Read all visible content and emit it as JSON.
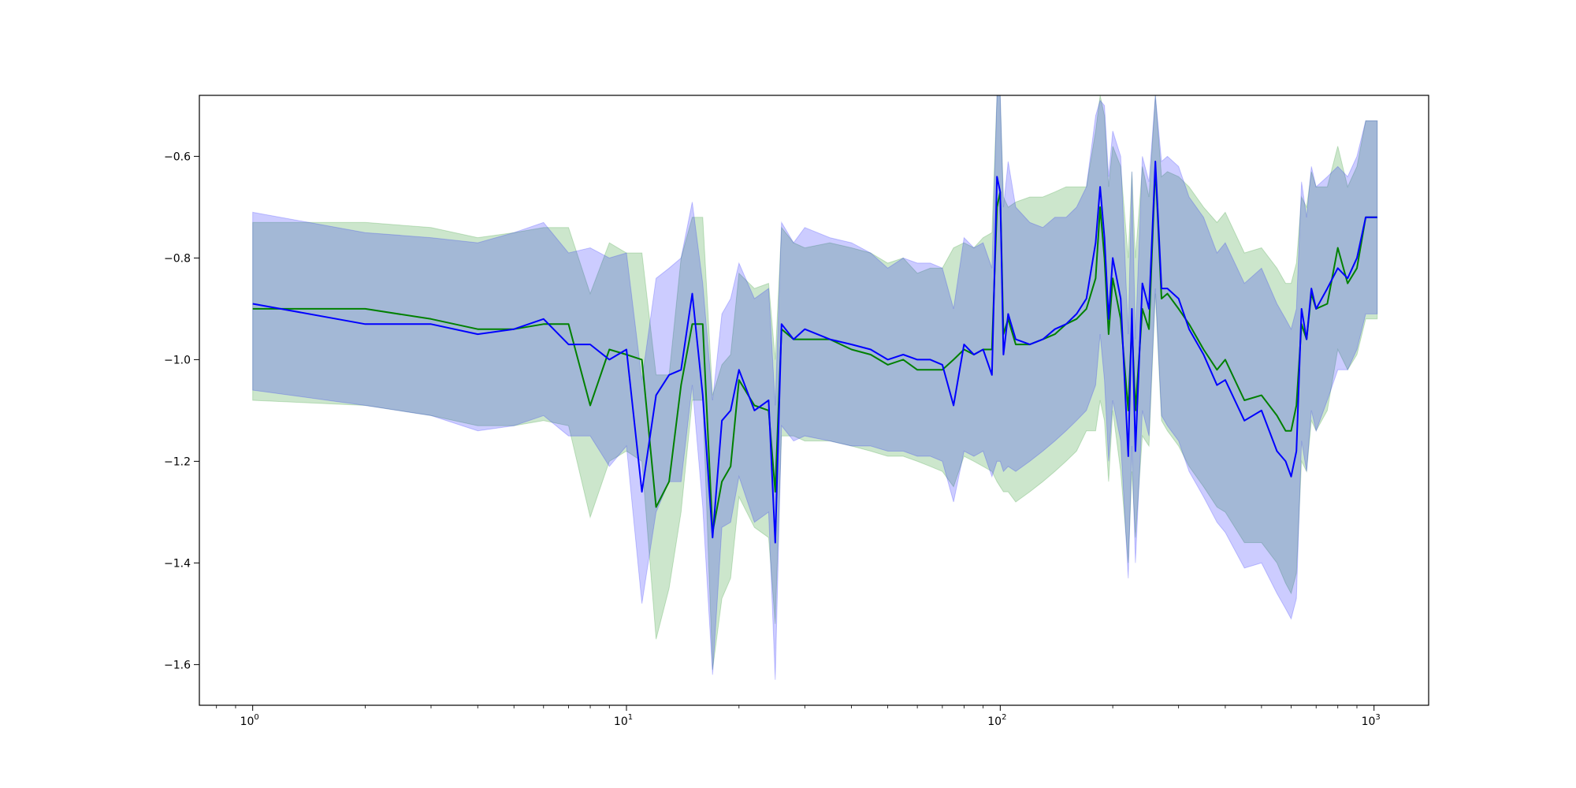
{
  "chart_data": {
    "type": "line",
    "title": "",
    "xlabel": "",
    "ylabel": "",
    "xscale": "log",
    "xlim": [
      0.72,
      1400
    ],
    "ylim": [
      -1.68,
      -0.48
    ],
    "grid": false,
    "legend": "none",
    "x_ticks": [
      {
        "base": "10",
        "exp": "0",
        "value": 1
      },
      {
        "base": "10",
        "exp": "1",
        "value": 10
      },
      {
        "base": "10",
        "exp": "2",
        "value": 100
      },
      {
        "base": "10",
        "exp": "3",
        "value": 1000
      }
    ],
    "y_ticks": [
      {
        "label": "−0.6",
        "value": -0.6
      },
      {
        "label": "−0.8",
        "value": -0.8
      },
      {
        "label": "−1.0",
        "value": -1.0
      },
      {
        "label": "−1.2",
        "value": -1.2
      },
      {
        "label": "−1.4",
        "value": -1.4
      },
      {
        "label": "−1.6",
        "value": -1.6
      }
    ],
    "series": [
      {
        "color": "#008000",
        "band_color": "#008000",
        "band_opacity": 0.2,
        "x": [
          1,
          2,
          3,
          4,
          5,
          6,
          7,
          8,
          9,
          10,
          11,
          12,
          13,
          14,
          15,
          16,
          17,
          18,
          19,
          20,
          22,
          24,
          25,
          26,
          28,
          30,
          35,
          40,
          45,
          50,
          55,
          60,
          65,
          70,
          75,
          80,
          85,
          90,
          95,
          98,
          100,
          102,
          105,
          110,
          120,
          130,
          140,
          150,
          160,
          170,
          180,
          185,
          190,
          195,
          200,
          210,
          220,
          225,
          230,
          240,
          250,
          260,
          270,
          280,
          300,
          320,
          350,
          380,
          400,
          450,
          500,
          550,
          580,
          600,
          620,
          640,
          660,
          680,
          700,
          750,
          800,
          850,
          900,
          950,
          1000,
          1020
        ],
        "y": [
          -0.9,
          -0.9,
          -0.92,
          -0.94,
          -0.94,
          -0.93,
          -0.93,
          -1.09,
          -0.98,
          -0.99,
          -1.0,
          -1.29,
          -1.24,
          -1.05,
          -0.93,
          -0.93,
          -1.34,
          -1.24,
          -1.21,
          -1.04,
          -1.09,
          -1.1,
          -1.26,
          -0.94,
          -0.96,
          -0.96,
          -0.96,
          -0.98,
          -0.99,
          -1.01,
          -1.0,
          -1.02,
          -1.02,
          -1.02,
          -1.0,
          -0.98,
          -0.99,
          -0.98,
          -0.98,
          -0.7,
          -0.67,
          -0.95,
          -0.92,
          -0.97,
          -0.97,
          -0.96,
          -0.95,
          -0.93,
          -0.92,
          -0.9,
          -0.84,
          -0.7,
          -0.8,
          -0.95,
          -0.84,
          -0.92,
          -1.1,
          -0.93,
          -1.1,
          -0.9,
          -0.94,
          -0.62,
          -0.88,
          -0.87,
          -0.9,
          -0.93,
          -0.98,
          -1.02,
          -1.0,
          -1.08,
          -1.07,
          -1.11,
          -1.14,
          -1.14,
          -1.09,
          -0.93,
          -0.96,
          -0.87,
          -0.9,
          -0.89,
          -0.78,
          -0.85,
          -0.82,
          -0.72,
          -0.72,
          -0.72
        ],
        "lower": [
          -1.08,
          -1.09,
          -1.11,
          -1.13,
          -1.13,
          -1.12,
          -1.13,
          -1.31,
          -1.2,
          -1.18,
          -1.2,
          -1.55,
          -1.45,
          -1.3,
          -1.08,
          -1.08,
          -1.61,
          -1.47,
          -1.43,
          -1.27,
          -1.33,
          -1.35,
          -1.52,
          -1.15,
          -1.15,
          -1.16,
          -1.16,
          -1.17,
          -1.18,
          -1.19,
          -1.19,
          -1.2,
          -1.21,
          -1.22,
          -1.25,
          -1.19,
          -1.2,
          -1.21,
          -1.22,
          -1.24,
          -1.25,
          -1.26,
          -1.26,
          -1.28,
          -1.26,
          -1.24,
          -1.22,
          -1.2,
          -1.18,
          -1.14,
          -1.14,
          -1.08,
          -1.12,
          -1.24,
          -1.1,
          -1.22,
          -1.4,
          -1.22,
          -1.35,
          -1.15,
          -1.17,
          -0.87,
          -1.12,
          -1.14,
          -1.17,
          -1.21,
          -1.25,
          -1.29,
          -1.3,
          -1.36,
          -1.36,
          -1.4,
          -1.44,
          -1.46,
          -1.42,
          -1.2,
          -1.22,
          -1.12,
          -1.14,
          -1.1,
          -0.98,
          -1.02,
          -0.99,
          -0.92,
          -0.92,
          -0.92
        ],
        "upper": [
          -0.73,
          -0.73,
          -0.74,
          -0.76,
          -0.75,
          -0.74,
          -0.74,
          -0.87,
          -0.77,
          -0.79,
          -0.79,
          -1.03,
          -1.03,
          -0.8,
          -0.72,
          -0.72,
          -1.07,
          -1.01,
          -0.99,
          -0.83,
          -0.86,
          -0.85,
          -1.0,
          -0.74,
          -0.77,
          -0.78,
          -0.77,
          -0.78,
          -0.79,
          -0.81,
          -0.8,
          -0.83,
          -0.82,
          -0.82,
          -0.78,
          -0.77,
          -0.78,
          -0.76,
          -0.75,
          -0.48,
          -0.48,
          -0.68,
          -0.7,
          -0.69,
          -0.68,
          -0.68,
          -0.67,
          -0.66,
          -0.66,
          -0.66,
          -0.55,
          -0.48,
          -0.52,
          -0.66,
          -0.58,
          -0.62,
          -0.8,
          -0.63,
          -0.8,
          -0.62,
          -0.68,
          -0.48,
          -0.64,
          -0.63,
          -0.64,
          -0.66,
          -0.7,
          -0.73,
          -0.71,
          -0.79,
          -0.78,
          -0.82,
          -0.85,
          -0.85,
          -0.81,
          -0.68,
          -0.7,
          -0.63,
          -0.66,
          -0.66,
          -0.58,
          -0.66,
          -0.62,
          -0.53,
          -0.53,
          -0.53
        ]
      },
      {
        "color": "#0000ff",
        "band_color": "#0000ff",
        "band_opacity": 0.2,
        "x": [
          1,
          2,
          3,
          4,
          5,
          6,
          7,
          8,
          9,
          10,
          11,
          12,
          13,
          14,
          15,
          16,
          17,
          18,
          19,
          20,
          22,
          24,
          25,
          26,
          28,
          30,
          35,
          40,
          45,
          50,
          55,
          60,
          65,
          70,
          75,
          80,
          85,
          90,
          95,
          98,
          100,
          102,
          105,
          110,
          120,
          130,
          140,
          150,
          160,
          170,
          180,
          185,
          190,
          195,
          200,
          210,
          220,
          225,
          230,
          240,
          250,
          260,
          270,
          280,
          300,
          320,
          350,
          380,
          400,
          450,
          500,
          550,
          580,
          600,
          620,
          640,
          660,
          680,
          700,
          750,
          800,
          850,
          900,
          950,
          1000,
          1020
        ],
        "y": [
          -0.89,
          -0.93,
          -0.93,
          -0.95,
          -0.94,
          -0.92,
          -0.97,
          -0.97,
          -1.0,
          -0.98,
          -1.26,
          -1.07,
          -1.03,
          -1.02,
          -0.87,
          -1.07,
          -1.35,
          -1.12,
          -1.1,
          -1.02,
          -1.1,
          -1.08,
          -1.36,
          -0.93,
          -0.96,
          -0.94,
          -0.96,
          -0.97,
          -0.98,
          -1.0,
          -0.99,
          -1.0,
          -1.0,
          -1.01,
          -1.09,
          -0.97,
          -0.99,
          -0.98,
          -1.03,
          -0.64,
          -0.67,
          -0.99,
          -0.91,
          -0.96,
          -0.97,
          -0.96,
          -0.94,
          -0.93,
          -0.91,
          -0.88,
          -0.77,
          -0.66,
          -0.76,
          -0.92,
          -0.8,
          -0.88,
          -1.19,
          -0.9,
          -1.18,
          -0.85,
          -0.9,
          -0.61,
          -0.86,
          -0.86,
          -0.88,
          -0.94,
          -0.99,
          -1.05,
          -1.04,
          -1.12,
          -1.1,
          -1.18,
          -1.2,
          -1.23,
          -1.18,
          -0.9,
          -0.96,
          -0.86,
          -0.9,
          -0.86,
          -0.82,
          -0.84,
          -0.8,
          -0.72,
          -0.72,
          -0.72
        ],
        "lower": [
          -1.06,
          -1.09,
          -1.11,
          -1.14,
          -1.13,
          -1.11,
          -1.15,
          -1.15,
          -1.21,
          -1.17,
          -1.48,
          -1.3,
          -1.24,
          -1.24,
          -1.05,
          -1.29,
          -1.62,
          -1.33,
          -1.32,
          -1.23,
          -1.32,
          -1.3,
          -1.63,
          -1.13,
          -1.16,
          -1.15,
          -1.16,
          -1.17,
          -1.17,
          -1.18,
          -1.18,
          -1.19,
          -1.19,
          -1.2,
          -1.28,
          -1.18,
          -1.19,
          -1.18,
          -1.23,
          -1.2,
          -1.2,
          -1.22,
          -1.21,
          -1.22,
          -1.2,
          -1.18,
          -1.16,
          -1.14,
          -1.12,
          -1.1,
          -1.05,
          -0.95,
          -1.04,
          -1.2,
          -1.08,
          -1.16,
          -1.43,
          -1.17,
          -1.4,
          -1.1,
          -1.15,
          -0.86,
          -1.11,
          -1.13,
          -1.16,
          -1.22,
          -1.27,
          -1.32,
          -1.34,
          -1.41,
          -1.4,
          -1.46,
          -1.49,
          -1.51,
          -1.47,
          -1.16,
          -1.22,
          -1.1,
          -1.14,
          -1.08,
          -1.02,
          -1.02,
          -0.98,
          -0.91,
          -0.91,
          -0.91
        ],
        "upper": [
          -0.71,
          -0.75,
          -0.76,
          -0.77,
          -0.75,
          -0.73,
          -0.79,
          -0.78,
          -0.8,
          -0.79,
          -1.04,
          -0.84,
          -0.82,
          -0.8,
          -0.69,
          -0.85,
          -1.08,
          -0.91,
          -0.88,
          -0.81,
          -0.88,
          -0.86,
          -1.09,
          -0.73,
          -0.77,
          -0.74,
          -0.76,
          -0.77,
          -0.79,
          -0.82,
          -0.8,
          -0.81,
          -0.81,
          -0.82,
          -0.9,
          -0.76,
          -0.78,
          -0.77,
          -0.82,
          -0.48,
          -0.48,
          -0.7,
          -0.61,
          -0.7,
          -0.73,
          -0.74,
          -0.72,
          -0.72,
          -0.7,
          -0.66,
          -0.52,
          -0.49,
          -0.5,
          -0.64,
          -0.55,
          -0.6,
          -0.95,
          -0.63,
          -0.96,
          -0.6,
          -0.65,
          -0.48,
          -0.61,
          -0.6,
          -0.62,
          -0.68,
          -0.72,
          -0.79,
          -0.77,
          -0.85,
          -0.82,
          -0.89,
          -0.92,
          -0.94,
          -0.9,
          -0.65,
          -0.72,
          -0.62,
          -0.66,
          -0.64,
          -0.62,
          -0.64,
          -0.6,
          -0.53,
          -0.53,
          -0.53
        ]
      }
    ]
  }
}
